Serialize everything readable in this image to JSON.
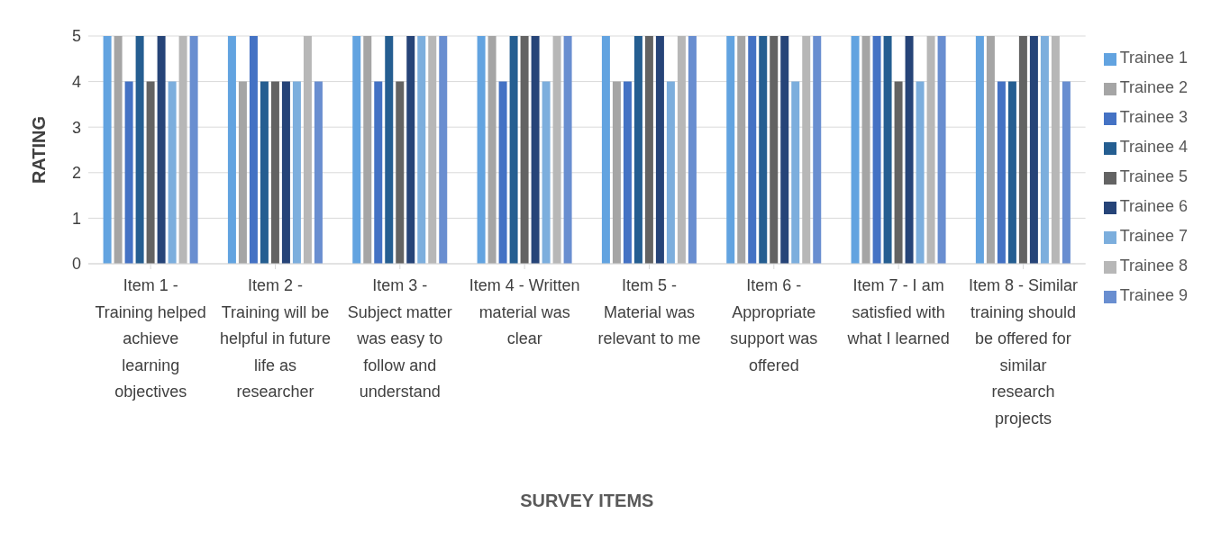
{
  "chart_data": {
    "type": "bar",
    "xlabel": "SURVEY ITEMS",
    "ylabel": "RATING",
    "categories": [
      "Item 1 - Training helped achieve learning objectives",
      "Item 2 - Training will be helpful in future life as researcher",
      "Item 3 - Subject matter was easy to follow and understand",
      "Item 4 - Written material was clear",
      "Item 5 - Material was relevant to me",
      "Item 6 - Appropriate support was offered",
      "Item 7 - I am satisfied with what I learned",
      "Item 8 - Similar training should be offered for similar research projects"
    ],
    "series": [
      {
        "name": "Trainee 1",
        "color": "#62a3e0",
        "values": [
          5,
          5,
          5,
          5,
          5,
          5,
          5,
          5
        ]
      },
      {
        "name": "Trainee 2",
        "color": "#a5a5a5",
        "values": [
          5,
          4,
          5,
          5,
          4,
          5,
          5,
          5
        ]
      },
      {
        "name": "Trainee 3",
        "color": "#4472c4",
        "values": [
          4,
          5,
          4,
          4,
          4,
          5,
          5,
          4
        ]
      },
      {
        "name": "Trainee 4",
        "color": "#255e91",
        "values": [
          5,
          4,
          5,
          5,
          5,
          5,
          5,
          4
        ]
      },
      {
        "name": "Trainee 5",
        "color": "#636363",
        "values": [
          4,
          4,
          4,
          5,
          5,
          5,
          4,
          5
        ]
      },
      {
        "name": "Trainee 6",
        "color": "#264478",
        "values": [
          5,
          4,
          5,
          5,
          5,
          5,
          5,
          5
        ]
      },
      {
        "name": "Trainee 7",
        "color": "#7caedd",
        "values": [
          4,
          4,
          5,
          4,
          4,
          4,
          4,
          5
        ]
      },
      {
        "name": "Trainee 8",
        "color": "#b7b7b7",
        "values": [
          5,
          5,
          5,
          5,
          5,
          5,
          5,
          5
        ]
      },
      {
        "name": "Trainee 9",
        "color": "#698ed0",
        "values": [
          5,
          4,
          5,
          5,
          5,
          5,
          5,
          4
        ]
      }
    ],
    "ylim": [
      0,
      5
    ],
    "yticks": [
      0,
      1,
      2,
      3,
      4,
      5
    ],
    "grid": "y",
    "legend": "right"
  }
}
